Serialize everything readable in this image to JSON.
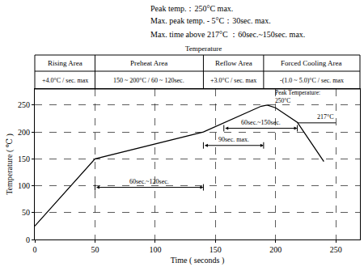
{
  "chart_data": {
    "type": "line",
    "header_notes": [
      "Peak temp.：250°C max.",
      "Max. peak temp. - 5°C：30sec. max.",
      "Max. time above 217°C ：60sec.~150sec. max."
    ],
    "table_title": "Temperature",
    "zones": [
      {
        "name": "Rising Area",
        "rate": "+4.0°C / sec. max",
        "x0": 0
      },
      {
        "name": "Preheat Area",
        "rate": "150 ~ 200°C / 60 ~ 120sec.",
        "x0": 50
      },
      {
        "name": "Reflow Area",
        "rate": "+3.0°C / sec. max",
        "x0": 140
      },
      {
        "name": "Forced Cooling Area",
        "rate": "-(1.0 ~ 5.0)°C / sec. max",
        "x0": 190
      }
    ],
    "x": [
      0,
      50,
      140,
      188,
      193,
      200,
      218,
      240
    ],
    "values": [
      25,
      150,
      200,
      248,
      250,
      245,
      218,
      145
    ],
    "color": "#000000",
    "x_label": "Time ( seconds )",
    "y_label": "Temperature ( ℃ )",
    "xlim": [
      0,
      270
    ],
    "ylim": [
      0,
      280
    ],
    "xticks": [
      0,
      50,
      100,
      150,
      200,
      250
    ],
    "yticks": [
      0,
      50,
      100,
      150,
      200,
      250
    ],
    "grid": true,
    "spans": [
      {
        "text": "60sec.~120sec.",
        "x0": 50,
        "x1": 140,
        "y": 97
      },
      {
        "text": "90sec. max.",
        "x0": 140,
        "x1": 190,
        "y": 175
      },
      {
        "text": "60sec.~150sec.",
        "x0": 157,
        "x1": 218,
        "y": 207
      }
    ],
    "reference_line": {
      "text": "217°C",
      "y": 217,
      "x0": 218,
      "x1": 250
    },
    "peak_label": {
      "lines": [
        "Peak Temperature:",
        "250°C"
      ],
      "x": 198,
      "y": 265
    }
  }
}
